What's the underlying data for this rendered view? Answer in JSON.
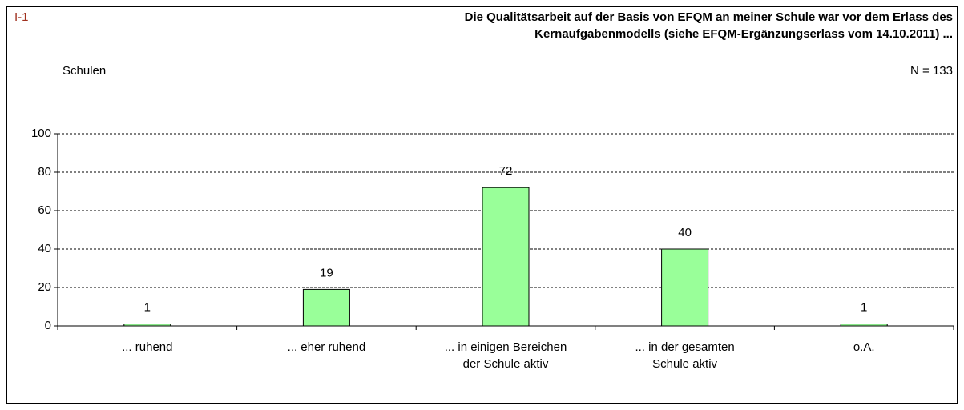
{
  "chart_data": {
    "type": "bar",
    "id_label": "I-1",
    "title": [
      "Die Qualitätsarbeit auf der Basis von EFQM an meiner Schule war vor dem Erlass des",
      "Kernaufgabenmodells  (siehe EFQM-Ergänzungserlass vom 14.10.2011) ..."
    ],
    "y_label": "Schulen",
    "annotation": "N = 133",
    "categories": [
      "... ruhend",
      "... eher ruhend",
      "... in einigen Bereichen\nder Schule aktiv",
      "... in der gesamten\nSchule aktiv",
      "o.A."
    ],
    "values": [
      1,
      19,
      72,
      40,
      1
    ],
    "color": "#99ff99",
    "ylim": [
      0,
      100
    ],
    "yticks": [
      0,
      20,
      40,
      60,
      80,
      100
    ],
    "grid": true
  }
}
